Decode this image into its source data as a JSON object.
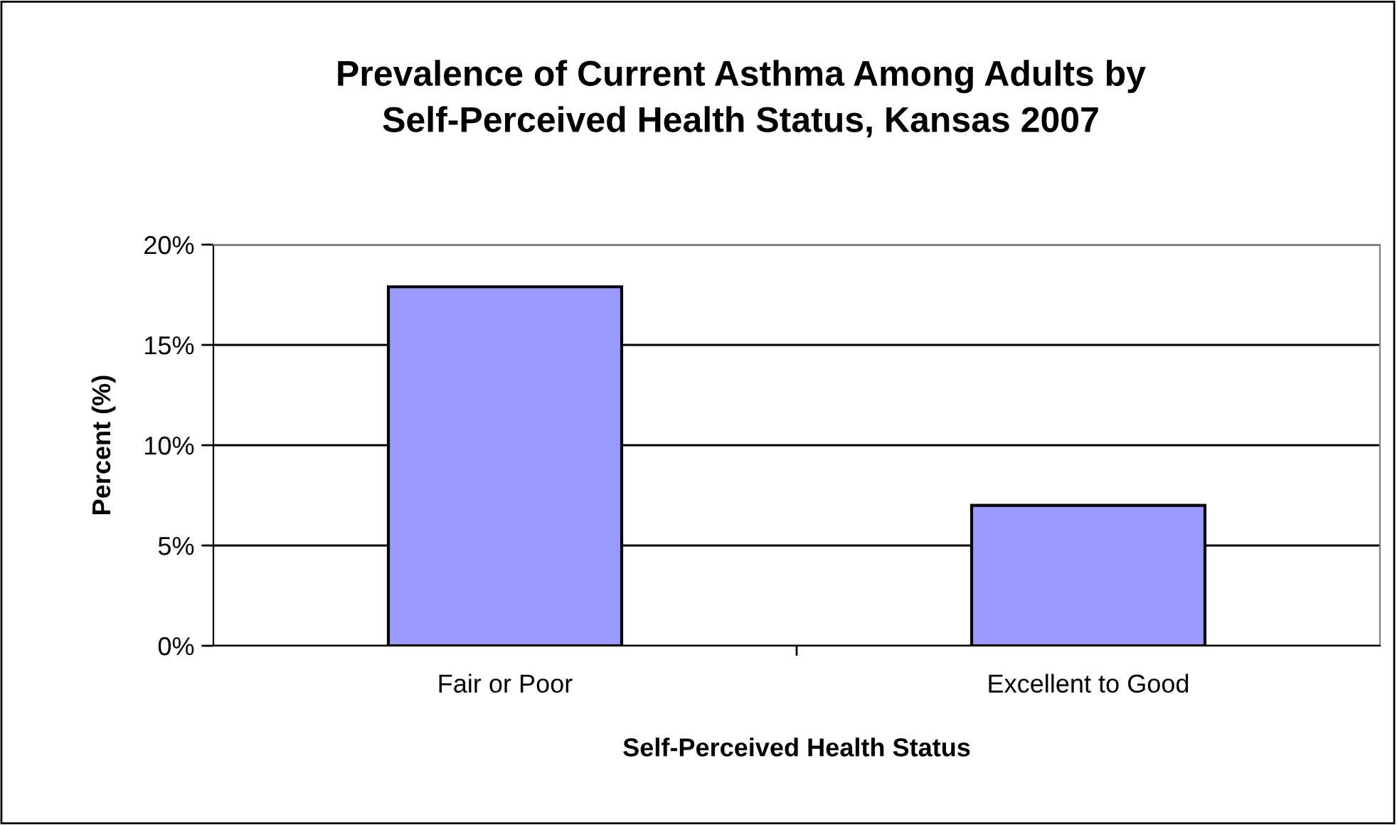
{
  "chart_data": {
    "type": "bar",
    "title": "Prevalence of Current Asthma Among Adults by\nSelf-Perceived Health Status, Kansas 2007",
    "xlabel": "Self-Perceived Health Status",
    "ylabel": "Percent (%)",
    "categories": [
      "Fair or Poor",
      "Excellent to Good"
    ],
    "values": [
      17.9,
      7.0
    ],
    "color": "#9999ff",
    "ylim": [
      0,
      20
    ],
    "yticks": [
      {
        "value": 0,
        "label": "0%"
      },
      {
        "value": 5,
        "label": "5%"
      },
      {
        "value": 10,
        "label": "10%"
      },
      {
        "value": 15,
        "label": "15%"
      },
      {
        "value": 20,
        "label": "20%"
      }
    ],
    "grid": "y"
  }
}
